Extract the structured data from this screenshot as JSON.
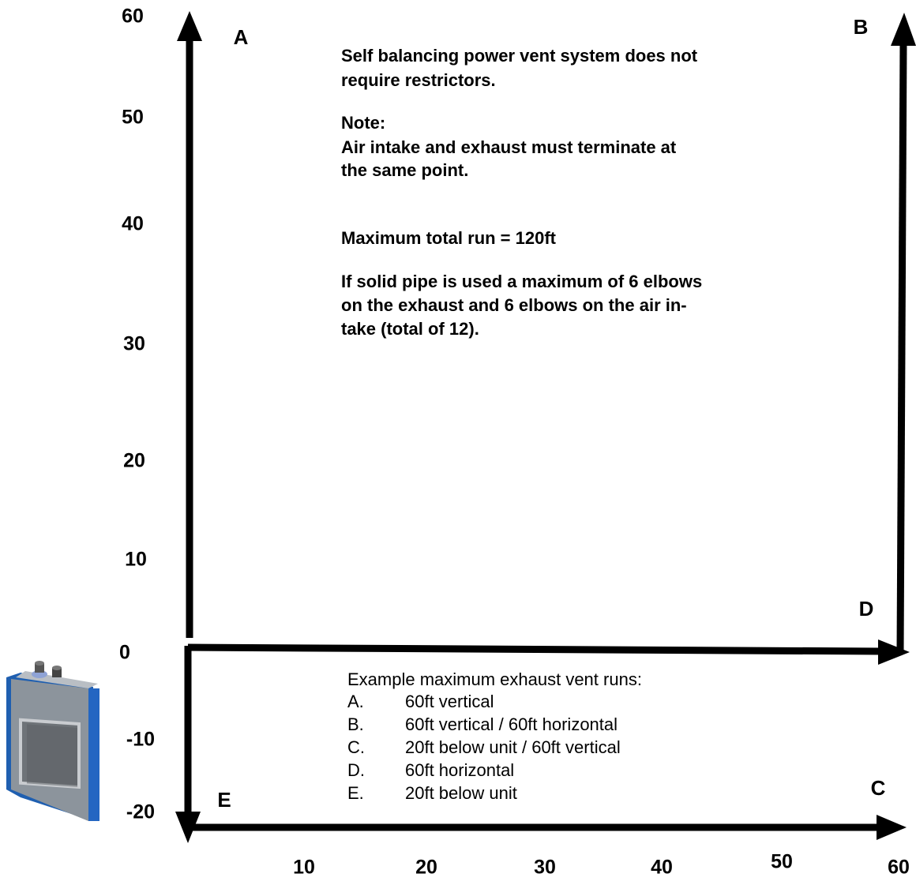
{
  "y_axis_labels": [
    "60",
    "50",
    "40",
    "30",
    "20",
    "10",
    "0",
    "-10",
    "-20"
  ],
  "x_axis_labels": [
    "10",
    "20",
    "30",
    "40",
    "50",
    "60"
  ],
  "run_letters": {
    "a": "A",
    "b": "B",
    "c": "C",
    "d": "D",
    "e": "E"
  },
  "notes": {
    "intro": [
      "Self balancing power vent system does not",
      "require restrictors."
    ],
    "note_heading": "Note:",
    "note": [
      "Air intake and exhaust must terminate at",
      "the same point."
    ],
    "max_run": "Maximum total run = 120ft",
    "elbows": [
      "If solid pipe is used a maximum of 6 elbows",
      "on the exhaust and 6 elbows on the air in-",
      "take (total of 12)."
    ]
  },
  "examples": {
    "heading": "Example maximum exhaust vent runs:",
    "items": [
      {
        "letter": "A.",
        "text": "60ft vertical"
      },
      {
        "letter": "B.",
        "text": "60ft vertical / 60ft horizontal"
      },
      {
        "letter": "C.",
        "text": "20ft below unit / 60ft vertical"
      },
      {
        "letter": "D.",
        "text": "60ft horizontal"
      },
      {
        "letter": "E.",
        "text": "20ft below unit"
      }
    ]
  }
}
